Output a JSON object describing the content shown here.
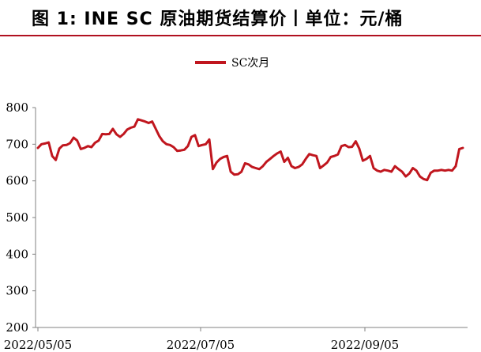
{
  "header": {
    "title": "图 1: INE SC 原油期货结算价丨单位：元/桶"
  },
  "colors": {
    "series": "#c0161e",
    "rule": "#b01020",
    "axis": "#808080"
  },
  "chart_data": {
    "type": "line",
    "title": "",
    "xlabel": "",
    "ylabel": "",
    "ylim": [
      200,
      800
    ],
    "yticks": [
      200,
      300,
      400,
      500,
      600,
      700,
      800
    ],
    "x_tick_labels": [
      "2022/05/05",
      "2022/07/05",
      "2022/09/05"
    ],
    "legend_position": "top-center",
    "grid": false,
    "series": [
      {
        "name": "SC次月",
        "values": [
          690,
          700,
          702,
          705,
          668,
          657,
          688,
          697,
          698,
          703,
          718,
          710,
          687,
          690,
          695,
          692,
          704,
          710,
          728,
          727,
          728,
          742,
          727,
          720,
          728,
          740,
          745,
          748,
          768,
          765,
          762,
          758,
          762,
          742,
          722,
          708,
          700,
          698,
          692,
          682,
          683,
          685,
          695,
          720,
          725,
          695,
          698,
          700,
          713,
          632,
          650,
          660,
          665,
          668,
          625,
          617,
          618,
          625,
          648,
          645,
          638,
          635,
          632,
          640,
          652,
          660,
          668,
          675,
          680,
          652,
          663,
          640,
          635,
          638,
          645,
          660,
          673,
          670,
          668,
          635,
          642,
          650,
          665,
          668,
          672,
          695,
          698,
          692,
          693,
          708,
          688,
          655,
          660,
          668,
          635,
          628,
          625,
          630,
          628,
          625,
          640,
          632,
          625,
          612,
          620,
          635,
          628,
          612,
          605,
          602,
          622,
          628,
          628,
          630,
          628,
          630,
          628,
          640,
          687,
          690
        ]
      }
    ]
  }
}
